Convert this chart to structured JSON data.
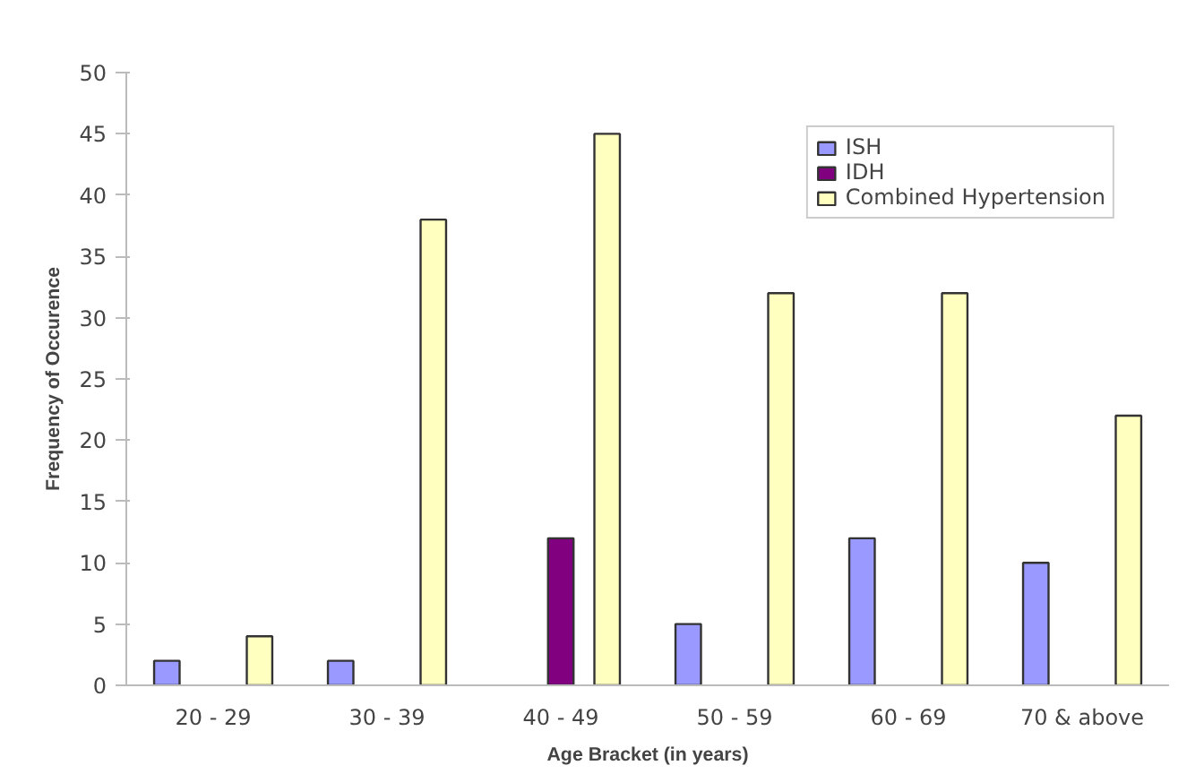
{
  "chart_data": {
    "type": "bar",
    "xlabel": "Age Bracket (in years)",
    "ylabel": "Frequency of Occurence",
    "categories": [
      "20 - 29",
      "30 - 39",
      "40 - 49",
      "50 - 59",
      "60 - 69",
      "70 & above"
    ],
    "series": [
      {
        "name": "ISH",
        "color": "#9999ff",
        "values": [
          2,
          2,
          null,
          5,
          12,
          10
        ]
      },
      {
        "name": "IDH",
        "color": "#800080",
        "values": [
          null,
          null,
          12,
          null,
          null,
          null
        ]
      },
      {
        "name": "Combined Hypertension",
        "color": "#ffffc0",
        "values": [
          4,
          38,
          45,
          32,
          32,
          22
        ]
      }
    ],
    "ylim": [
      0,
      50
    ],
    "yticks": [
      0,
      5,
      10,
      15,
      20,
      25,
      30,
      35,
      40,
      45,
      50
    ],
    "grid": false,
    "legend": "top right"
  }
}
